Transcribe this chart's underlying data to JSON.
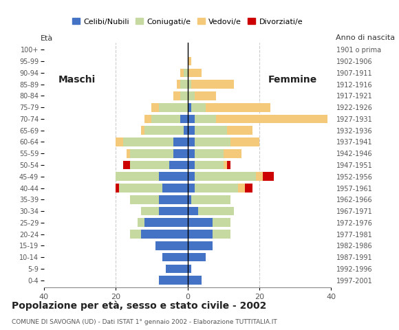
{
  "age_groups": [
    "0-4",
    "5-9",
    "10-14",
    "15-19",
    "20-24",
    "25-29",
    "30-34",
    "35-39",
    "40-44",
    "45-49",
    "50-54",
    "55-59",
    "60-64",
    "65-69",
    "70-74",
    "75-79",
    "80-84",
    "85-89",
    "90-94",
    "95-99",
    "100+"
  ],
  "birth_years": [
    "1997-2001",
    "1992-1996",
    "1987-1991",
    "1982-1986",
    "1977-1981",
    "1972-1976",
    "1967-1971",
    "1962-1966",
    "1957-1961",
    "1952-1956",
    "1947-1951",
    "1942-1946",
    "1937-1941",
    "1932-1936",
    "1927-1931",
    "1922-1926",
    "1917-1921",
    "1912-1916",
    "1907-1911",
    "1902-1906",
    "1901 o prima"
  ],
  "males": {
    "celibe": [
      8,
      6,
      7,
      9,
      13,
      12,
      8,
      8,
      7,
      8,
      5,
      4,
      4,
      1,
      2,
      0,
      0,
      0,
      0,
      0,
      0
    ],
    "coniugato": [
      0,
      0,
      0,
      0,
      3,
      2,
      5,
      8,
      12,
      12,
      11,
      12,
      14,
      11,
      8,
      8,
      2,
      2,
      1,
      0,
      0
    ],
    "vedovo": [
      0,
      0,
      0,
      0,
      0,
      0,
      0,
      0,
      0,
      0,
      0,
      1,
      2,
      1,
      2,
      2,
      2,
      1,
      1,
      0,
      0
    ],
    "divorziato": [
      0,
      0,
      0,
      0,
      0,
      0,
      0,
      0,
      1,
      0,
      2,
      0,
      0,
      0,
      0,
      0,
      0,
      0,
      0,
      0,
      0
    ]
  },
  "females": {
    "nubile": [
      4,
      1,
      5,
      7,
      7,
      7,
      3,
      1,
      2,
      2,
      2,
      2,
      2,
      2,
      2,
      1,
      0,
      0,
      0,
      0,
      0
    ],
    "coniugata": [
      0,
      0,
      0,
      0,
      5,
      5,
      10,
      11,
      12,
      17,
      8,
      8,
      10,
      9,
      6,
      4,
      2,
      1,
      0,
      0,
      0
    ],
    "vedova": [
      0,
      0,
      0,
      0,
      0,
      0,
      0,
      0,
      2,
      2,
      1,
      5,
      8,
      7,
      31,
      18,
      6,
      12,
      4,
      1,
      0
    ],
    "divorziata": [
      0,
      0,
      0,
      0,
      0,
      0,
      0,
      0,
      2,
      3,
      1,
      0,
      0,
      0,
      0,
      0,
      0,
      0,
      0,
      0,
      0
    ]
  },
  "colors": {
    "celibe": "#4472c4",
    "coniugato": "#c5d9a0",
    "vedovo": "#f5c97a",
    "divorziato": "#cc0000"
  },
  "xlim": 40,
  "title": "Popolazione per età, sesso e stato civile - 2002",
  "subtitle": "COMUNE DI SAVOGNA (UD) - Dati ISTAT 1° gennaio 2002 - Elaborazione TUTTITALIA.IT",
  "legend_labels": [
    "Celibi/Nubili",
    "Coniugati/e",
    "Vedovi/e",
    "Divorziati/e"
  ],
  "ylabel_left": "Età",
  "ylabel_right": "Anno di nascita",
  "label_maschi": "Maschi",
  "label_femmine": "Femmine"
}
